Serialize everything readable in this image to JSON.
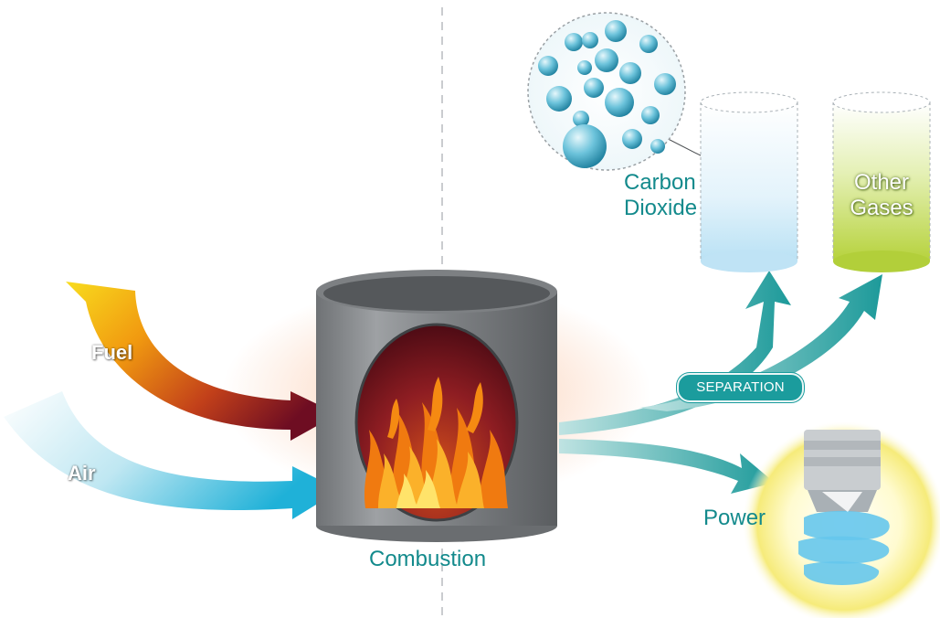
{
  "labels": {
    "fuel": "Fuel",
    "air": "Air",
    "combustion": "Combustion",
    "separation": "SEPARATION",
    "carbon_dioxide": [
      "Carbon",
      "Dioxide"
    ],
    "other_gases": [
      "Other",
      "Gases"
    ],
    "power": "Power"
  },
  "colors": {
    "teal": "#138a8c",
    "fuel_start": "#f6d21a",
    "fuel_end": "#7a1020",
    "air_start": "#f4fbfd",
    "air_end": "#2bb6d6",
    "chamber": "#8a8d90",
    "fire": "#f07a10",
    "co2_cylinder": "#d6eefa",
    "other_cylinder": "#cde07a",
    "bulb_glow": "#fff6b0"
  }
}
